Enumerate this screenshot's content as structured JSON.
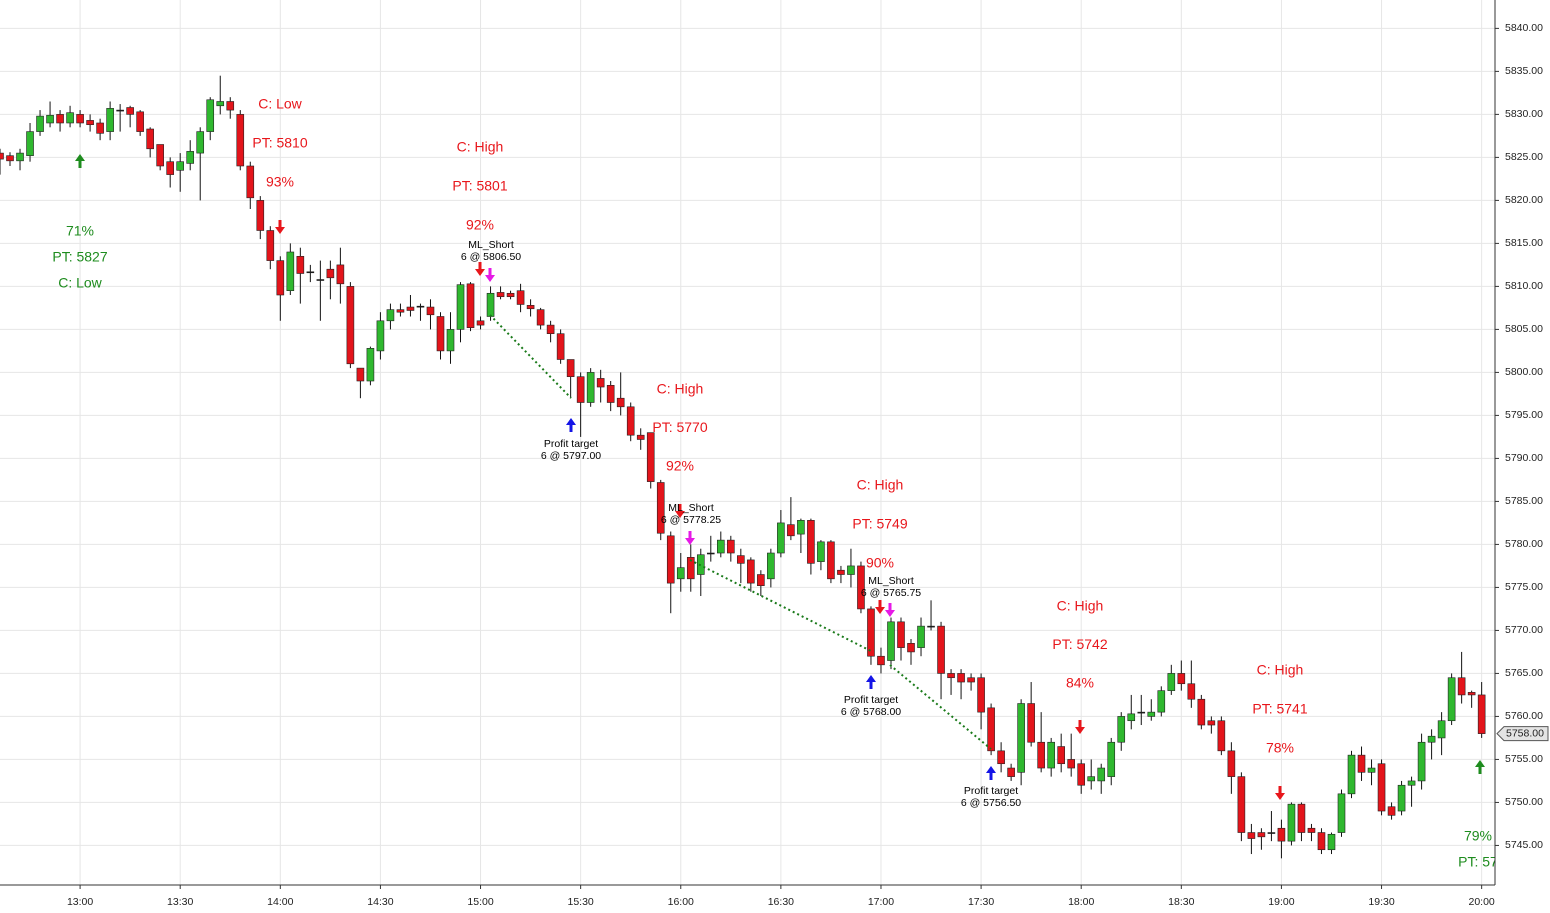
{
  "chart_data": {
    "type": "candlestick",
    "x": [
      "12:36",
      "12:39",
      "12:42",
      "12:45",
      "12:48",
      "12:51",
      "12:54",
      "12:57",
      "13:00",
      "13:03",
      "13:06",
      "13:09",
      "13:12",
      "13:15",
      "13:18",
      "13:21",
      "13:24",
      "13:27",
      "13:30",
      "13:33",
      "13:36",
      "13:39",
      "13:42",
      "13:45",
      "13:48",
      "13:51",
      "13:54",
      "13:57",
      "14:00",
      "14:03",
      "14:06",
      "14:09",
      "14:12",
      "14:15",
      "14:18",
      "14:21",
      "14:24",
      "14:27",
      "14:30",
      "14:33",
      "14:36",
      "14:39",
      "14:42",
      "14:45",
      "14:48",
      "14:51",
      "14:54",
      "14:57",
      "15:00",
      "15:03",
      "15:06",
      "15:09",
      "15:12",
      "15:15",
      "15:18",
      "15:21",
      "15:24",
      "15:27",
      "15:30",
      "15:33",
      "15:36",
      "15:39",
      "15:42",
      "15:45",
      "15:48",
      "15:51",
      "15:54",
      "15:57",
      "16:00",
      "16:03",
      "16:06",
      "16:09",
      "16:12",
      "16:15",
      "16:18",
      "16:21",
      "16:24",
      "16:27",
      "16:30",
      "16:33",
      "16:36",
      "16:39",
      "16:42",
      "16:45",
      "16:48",
      "16:51",
      "16:54",
      "16:57",
      "17:00",
      "17:03",
      "17:06",
      "17:09",
      "17:12",
      "17:15",
      "17:18",
      "17:21",
      "17:24",
      "17:27",
      "17:30",
      "17:33",
      "17:36",
      "17:39",
      "17:42",
      "17:45",
      "17:48",
      "17:51",
      "17:54",
      "17:57",
      "18:00",
      "18:03",
      "18:06",
      "18:09",
      "18:12",
      "18:15",
      "18:18",
      "18:21",
      "18:24",
      "18:27",
      "18:30",
      "18:33",
      "18:36",
      "18:39",
      "18:42",
      "18:45",
      "18:48",
      "18:51",
      "18:54",
      "18:57",
      "19:00",
      "19:03",
      "19:06",
      "19:09",
      "19:12",
      "19:15",
      "19:18",
      "19:21",
      "19:24",
      "19:27",
      "19:30",
      "19:33",
      "19:36",
      "19:39",
      "19:42",
      "19:45",
      "19:48",
      "19:51",
      "19:54",
      "19:57",
      "20:00"
    ],
    "open": [
      5825.5,
      5825.2,
      5824.6,
      5825.2,
      5828,
      5829,
      5830,
      5829,
      5830,
      5829.3,
      5829,
      5828,
      5830.5,
      5830.8,
      5830.3,
      5828.3,
      5826.5,
      5824.5,
      5823.5,
      5824.3,
      5825.5,
      5828,
      5831,
      5831.5,
      5830,
      5824,
      5820,
      5816.5,
      5813,
      5809.5,
      5813.5,
      5811.7,
      5810.8,
      5812,
      5812.5,
      5810,
      5800.5,
      5799,
      5802.5,
      5806,
      5807.3,
      5807.6,
      5807.7,
      5807.6,
      5806.5,
      5802.5,
      5805,
      5810.3,
      5806,
      5806.5,
      5809.3,
      5809.2,
      5809.5,
      5807.8,
      5807.3,
      5805.5,
      5804.5,
      5801.5,
      5799.5,
      5796.5,
      5799.3,
      5798.5,
      5797,
      5796,
      5792.7,
      5793,
      5787.2,
      5781,
      5776,
      5778.5,
      5776.5,
      5779,
      5779,
      5780.5,
      5778.7,
      5778.2,
      5776.5,
      5776,
      5779,
      5782.3,
      5781.2,
      5782.8,
      5778,
      5780.3,
      5777,
      5776.5,
      5777.5,
      5772.5,
      5767,
      5766.5,
      5771,
      5768.5,
      5768,
      5770.5,
      5770.5,
      5765,
      5765,
      5764.5,
      5764.5,
      5761,
      5756,
      5754,
      5753.5,
      5761.5,
      5757,
      5754,
      5756.5,
      5755,
      5754.5,
      5752.5,
      5752.5,
      5753,
      5757,
      5759.5,
      5760.5,
      5760,
      5760.5,
      5763,
      5765,
      5763.8,
      5762,
      5759.5,
      5759.5,
      5756,
      5753,
      5746.5,
      5746.5,
      5746.5,
      5747,
      5745.5,
      5749.8,
      5747,
      5746.5,
      5744.5,
      5746.5,
      5751,
      5755.5,
      5753.5,
      5754.5,
      5749.5,
      5749,
      5752,
      5752.5,
      5757,
      5757.5,
      5759.5,
      5764.5,
      5762.8,
      5762.5
    ],
    "high": [
      5826,
      5825.6,
      5826,
      5829,
      5830.5,
      5831.5,
      5830.5,
      5831,
      5830.5,
      5830,
      5829.5,
      5831.5,
      5831.2,
      5831,
      5830.5,
      5828.5,
      5826.5,
      5825,
      5825.5,
      5827,
      5828.5,
      5832,
      5834.5,
      5832,
      5830.5,
      5824.5,
      5820.5,
      5817,
      5813.5,
      5815,
      5814.5,
      5812.5,
      5813,
      5813,
      5814.5,
      5810.5,
      5800.5,
      5803,
      5807,
      5808,
      5808,
      5809,
      5808,
      5808.5,
      5807,
      5807,
      5810.5,
      5810.5,
      5806.5,
      5810,
      5810,
      5809.5,
      5810.3,
      5808.5,
      5807.5,
      5806,
      5805,
      5801.5,
      5800,
      5800.5,
      5800.3,
      5799,
      5800,
      5796.5,
      5793.5,
      5793,
      5787.5,
      5781.5,
      5779,
      5780,
      5779.5,
      5781,
      5781.5,
      5781,
      5779.5,
      5778.5,
      5777,
      5779.5,
      5784,
      5785.5,
      5783,
      5783,
      5780.5,
      5780.5,
      5777.5,
      5779.5,
      5778,
      5772.8,
      5768,
      5771.5,
      5771.5,
      5769,
      5771.5,
      5773.5,
      5771,
      5765.5,
      5765.5,
      5765,
      5765,
      5761.5,
      5757,
      5754.5,
      5762,
      5764,
      5760.5,
      5757.5,
      5758,
      5758,
      5755,
      5755,
      5754.5,
      5757.5,
      5760.5,
      5762.5,
      5762.5,
      5762,
      5763.5,
      5766,
      5766.5,
      5766.5,
      5762.5,
      5760,
      5760,
      5757,
      5753.5,
      5747.5,
      5747,
      5749,
      5748,
      5750,
      5750,
      5747.5,
      5747,
      5746.5,
      5751.5,
      5756,
      5756.5,
      5755,
      5755,
      5750,
      5752.5,
      5753,
      5758,
      5758.5,
      5760.5,
      5765,
      5767.5,
      5763,
      5764
    ],
    "low": [
      5823,
      5824,
      5823.5,
      5824.5,
      5827.5,
      5828.5,
      5828,
      5828.5,
      5828.5,
      5828,
      5827,
      5827,
      5828,
      5828.5,
      5827.5,
      5825,
      5823.5,
      5821.5,
      5821,
      5823.5,
      5820,
      5827,
      5830,
      5829.5,
      5823.5,
      5819,
      5815.5,
      5812,
      5806,
      5809,
      5808,
      5810.5,
      5806,
      5808.5,
      5808,
      5800.5,
      5797,
      5798.5,
      5801.5,
      5805,
      5806.5,
      5806.5,
      5806,
      5805,
      5801.5,
      5801,
      5803.5,
      5804.8,
      5805,
      5806,
      5808.5,
      5808.5,
      5807,
      5806.5,
      5805,
      5803.5,
      5801,
      5797,
      5792.5,
      5796,
      5796.5,
      5795.5,
      5795,
      5792,
      5791,
      5786.5,
      5780.5,
      5772,
      5774.5,
      5774.5,
      5774,
      5778,
      5778.5,
      5778,
      5775.5,
      5774.5,
      5774,
      5775,
      5778.5,
      5780.5,
      5779,
      5776.5,
      5777,
      5775.5,
      5775.5,
      5775,
      5772,
      5766,
      5765,
      5765.5,
      5766.5,
      5766,
      5767,
      5770,
      5762,
      5762.5,
      5762,
      5763,
      5758.5,
      5755.5,
      5753.5,
      5752.5,
      5752,
      5756.5,
      5753.5,
      5753,
      5753.5,
      5753,
      5751,
      5751.5,
      5751,
      5752,
      5756,
      5758.5,
      5759,
      5759.5,
      5760,
      5762.5,
      5763,
      5761,
      5758.5,
      5758,
      5755.5,
      5751,
      5745.5,
      5744,
      5744.5,
      5745.5,
      5743.5,
      5745,
      5745.5,
      5745.5,
      5744,
      5744,
      5746,
      5750.5,
      5752.5,
      5752,
      5748.5,
      5748,
      5748.5,
      5749.5,
      5751.5,
      5755,
      5755.5,
      5759,
      5761.5,
      5761,
      5757.5
    ],
    "close": [
      5824.8,
      5824.6,
      5825.5,
      5828,
      5829.8,
      5829.9,
      5829,
      5830.2,
      5829,
      5828.8,
      5827.8,
      5830.7,
      5830.5,
      5830,
      5828,
      5826,
      5824,
      5823,
      5824.5,
      5825.7,
      5828,
      5831.7,
      5831.5,
      5830.5,
      5824,
      5820.3,
      5816.5,
      5813,
      5809,
      5814,
      5811.5,
      5811.7,
      5810.8,
      5811,
      5810.3,
      5801,
      5799,
      5802.8,
      5806,
      5807.3,
      5807,
      5807.2,
      5807.7,
      5806.7,
      5802.5,
      5805,
      5810.2,
      5805.2,
      5805.5,
      5809.2,
      5808.8,
      5808.8,
      5807.9,
      5807.4,
      5805.5,
      5804.5,
      5801.5,
      5799.5,
      5796.5,
      5800,
      5798.3,
      5796.5,
      5796,
      5792.7,
      5792.2,
      5787.3,
      5781.3,
      5775.5,
      5777.3,
      5776,
      5778.8,
      5779,
      5780.5,
      5779,
      5777.8,
      5775.5,
      5775.2,
      5779,
      5782.5,
      5781,
      5782.8,
      5777.8,
      5780.3,
      5776,
      5776.5,
      5777.5,
      5772.5,
      5767,
      5766,
      5771,
      5768,
      5767.5,
      5770.5,
      5770.5,
      5765,
      5764.5,
      5764,
      5764,
      5760.5,
      5756,
      5754.5,
      5753,
      5761.5,
      5757,
      5754,
      5757,
      5754.5,
      5754,
      5752,
      5753,
      5754,
      5757,
      5760,
      5760.3,
      5760.5,
      5760.5,
      5763,
      5765,
      5763.8,
      5762,
      5759,
      5759,
      5756,
      5753,
      5746.5,
      5745.8,
      5746,
      5746.5,
      5745.5,
      5749.8,
      5746.5,
      5746.5,
      5744.5,
      5746.3,
      5751,
      5755.5,
      5753.5,
      5754,
      5749,
      5748.5,
      5752,
      5752.5,
      5757,
      5757.7,
      5759.5,
      5764.5,
      5762.5,
      5762.5,
      5758
    ],
    "up_color": "#2fb82f",
    "down_color": "#e3141b",
    "xlim": [
      "12:36",
      "20:04"
    ],
    "xticks": [
      "13:00",
      "13:30",
      "14:00",
      "14:30",
      "15:00",
      "15:30",
      "16:00",
      "16:30",
      "17:00",
      "17:30",
      "18:00",
      "18:30",
      "19:00",
      "19:30",
      "20:00"
    ],
    "ylim": [
      5740.4,
      5843.3
    ],
    "yticks": [
      {
        "value": 5745,
        "label": "5745.00"
      },
      {
        "value": 5750,
        "label": "5750.00"
      },
      {
        "value": 5755,
        "label": "5755.00"
      },
      {
        "value": 5760,
        "label": "5760.00"
      },
      {
        "value": 5765,
        "label": "5765.00"
      },
      {
        "value": 5770,
        "label": "5770.00"
      },
      {
        "value": 5775,
        "label": "5775.00"
      },
      {
        "value": 5780,
        "label": "5780.00"
      },
      {
        "value": 5785,
        "label": "5785.00"
      },
      {
        "value": 5790,
        "label": "5790.00"
      },
      {
        "value": 5795,
        "label": "5795.00"
      },
      {
        "value": 5800,
        "label": "5800.00"
      },
      {
        "value": 5805,
        "label": "5805.00"
      },
      {
        "value": 5810,
        "label": "5810.00"
      },
      {
        "value": 5815,
        "label": "5815.00"
      },
      {
        "value": 5820,
        "label": "5820.00"
      },
      {
        "value": 5825,
        "label": "5825.00"
      },
      {
        "value": 5830,
        "label": "5830.00"
      },
      {
        "value": 5835,
        "label": "5835.00"
      },
      {
        "value": 5840,
        "label": "5840.00"
      }
    ],
    "grid": true,
    "price_tag": "5758.00",
    "signals": [
      {
        "lines": [
          "71%",
          "PT: 5827",
          "C: Low"
        ],
        "color": "#1e8c1e"
      },
      {
        "lines": [
          "C: Low",
          "PT: 5810",
          "93%"
        ],
        "color": "#e8161b"
      },
      {
        "lines": [
          "C: High",
          "PT: 5801",
          "92%"
        ],
        "color": "#e8161b"
      },
      {
        "lines": [
          "C: High",
          "PT: 5770",
          "92%"
        ],
        "color": "#e8161b"
      },
      {
        "lines": [
          "C: High",
          "PT: 5749",
          "90%"
        ],
        "color": "#e8161b"
      },
      {
        "lines": [
          "C: High",
          "PT: 5742",
          "84%"
        ],
        "color": "#e8161b"
      },
      {
        "lines": [
          "C: High",
          "PT: 5741",
          "78%"
        ],
        "color": "#e8161b"
      },
      {
        "lines": [
          "79%",
          "PT: 57"
        ],
        "color": "#1e8c1e"
      }
    ],
    "trades": [
      {
        "lines": [
          "ML_Short",
          "6 @ 5806.50"
        ]
      },
      {
        "lines": [
          "Profit target",
          "6 @ 5797.00"
        ]
      },
      {
        "lines": [
          "ML_Short",
          "6 @ 5778.25"
        ]
      },
      {
        "lines": [
          "Profit target",
          "6 @ 5768.00"
        ]
      },
      {
        "lines": [
          "ML_Short",
          "6 @ 5765.75"
        ]
      },
      {
        "lines": [
          "Profit target",
          "6 @ 5756.50"
        ]
      }
    ]
  }
}
